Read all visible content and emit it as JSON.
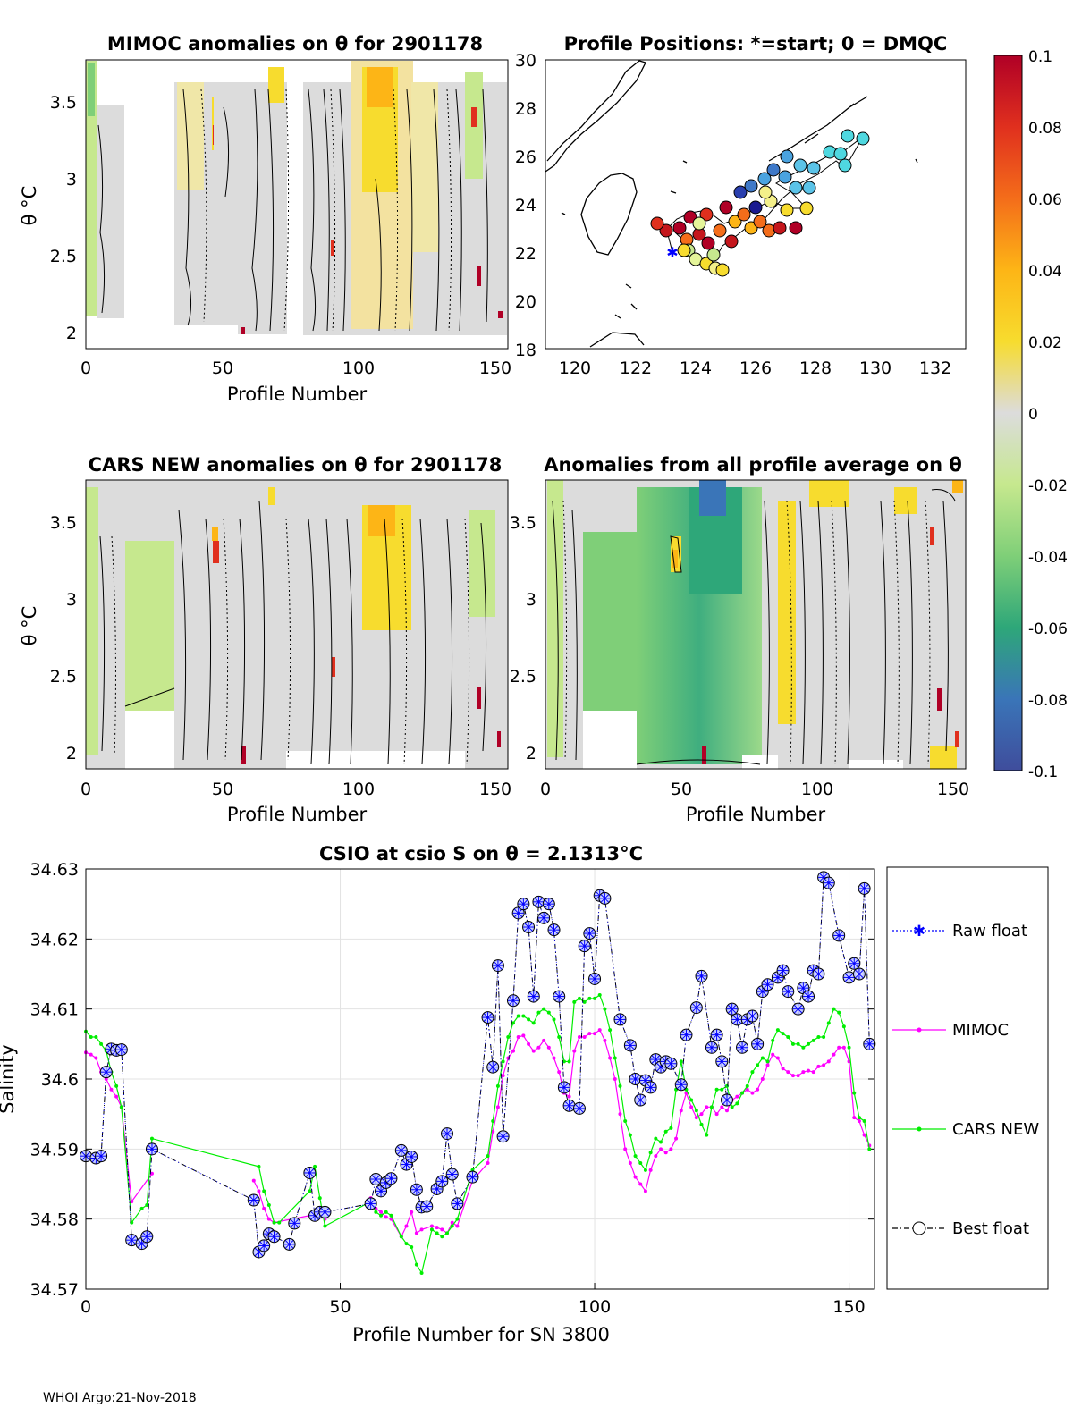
{
  "panels": {
    "mimoc": {
      "title": "MIMOC anomalies on θ  for 2901178",
      "xlabel": "Profile Number",
      "ylabel": "θ °C"
    },
    "positions": {
      "title": "Profile Positions: *=start; 0 = DMQC"
    },
    "cars": {
      "title": "CARS NEW anomalies on θ for 2901178",
      "xlabel": "Profile Number",
      "ylabel": "θ °C"
    },
    "average": {
      "title": "Anomalies from all profile average on θ",
      "xlabel": "Profile Number"
    }
  },
  "colorbar": {
    "ticks": [
      "0.1",
      "0.08",
      "0.06",
      "0.04",
      "0.02",
      "0",
      "-0.02",
      "-0.04",
      "-0.06",
      "-0.08",
      "-0.1"
    ],
    "colors": [
      "#b00026",
      "#e0301e",
      "#f46d1a",
      "#fdb516",
      "#f7dc2e",
      "#dcdcdc",
      "#c6e88e",
      "#7fcf78",
      "#2ea779",
      "#3a75b8",
      "#3f4d9c"
    ]
  },
  "axes": {
    "theta_ticks": [
      "2",
      "2.5",
      "3",
      "3.5"
    ],
    "profile_ticks": [
      "0",
      "50",
      "100",
      "150"
    ],
    "lat_ticks": [
      "18",
      "20",
      "22",
      "24",
      "26",
      "28",
      "30"
    ],
    "lon_ticks": [
      "120",
      "122",
      "124",
      "126",
      "128",
      "130",
      "132"
    ]
  },
  "chart_data": {
    "type": "line",
    "title": "CSIO at csio S on θ = 2.1313°C",
    "xlabel": "Profile Number for SN 3800",
    "ylabel": "Salinity",
    "xlim": [
      0,
      155
    ],
    "ylim": [
      34.57,
      34.63
    ],
    "xticks": [
      "0",
      "50",
      "100",
      "150"
    ],
    "yticks": [
      "34.57",
      "34.58",
      "34.59",
      "34.6",
      "34.61",
      "34.62",
      "34.63"
    ],
    "series": [
      {
        "name": "Raw float",
        "color": "#0000ff",
        "x": [
          0,
          2,
          3,
          4,
          5,
          6,
          7,
          9,
          11,
          12,
          13,
          33,
          34,
          35,
          36,
          37,
          40,
          41,
          44,
          45,
          46,
          47,
          56,
          57,
          58,
          59,
          60,
          62,
          63,
          64,
          65,
          66,
          67,
          69,
          70,
          71,
          72,
          73,
          76,
          79,
          80,
          81,
          82,
          84,
          85,
          86,
          87,
          88,
          89,
          90,
          91,
          92,
          93,
          94,
          95,
          97,
          98,
          99,
          100,
          101,
          102,
          105,
          107,
          108,
          109,
          110,
          111,
          112,
          113,
          114,
          115,
          117,
          118,
          120,
          121,
          123,
          124,
          125,
          126,
          127,
          128,
          129,
          130,
          131,
          132,
          133,
          134,
          136,
          137,
          138,
          140,
          141,
          142,
          143,
          144,
          145,
          146,
          148,
          150,
          151,
          152,
          153,
          154
        ],
        "y": [
          34.589,
          34.5887,
          34.589,
          34.601,
          34.6043,
          34.6041,
          34.6042,
          34.577,
          34.5765,
          34.5775,
          34.59,
          34.5827,
          34.5753,
          34.5762,
          34.5779,
          34.5775,
          34.5764,
          34.5794,
          34.5866,
          34.5805,
          34.581,
          34.581,
          34.5822,
          34.5857,
          34.584,
          34.5852,
          34.5858,
          34.5898,
          34.5878,
          34.5889,
          34.5842,
          34.5817,
          34.5818,
          34.5843,
          34.5854,
          34.5922,
          34.5864,
          34.5822,
          34.586,
          34.6088,
          34.6017,
          34.6162,
          34.5918,
          34.6112,
          34.6237,
          34.625,
          34.6217,
          34.6118,
          34.6253,
          34.623,
          34.625,
          34.6213,
          34.6118,
          34.5988,
          34.5962,
          34.5958,
          34.619,
          34.6208,
          34.6143,
          34.6262,
          34.6258,
          34.6085,
          34.6048,
          34.6,
          34.597,
          34.5998,
          34.5988,
          34.6028,
          34.6017,
          34.6025,
          34.6022,
          34.5992,
          34.6063,
          34.6102,
          34.6147,
          34.6045,
          34.6063,
          34.6025,
          34.597,
          34.61,
          34.6085,
          34.6045,
          34.6085,
          34.609,
          34.605,
          34.6125,
          34.6135,
          34.6145,
          34.6155,
          34.6125,
          34.61,
          34.613,
          34.6118,
          34.6155,
          34.615,
          34.6288,
          34.628,
          34.6205,
          34.6145,
          34.6165,
          34.615,
          34.6272,
          34.605
        ]
      },
      {
        "name": "MIMOC",
        "color": "#ff00ff",
        "x": [
          0,
          1,
          2,
          3,
          4,
          5,
          6,
          7,
          9,
          13,
          33,
          34,
          35,
          36,
          37,
          44,
          45,
          46,
          47,
          56,
          57,
          58,
          59,
          60,
          62,
          63,
          64,
          65,
          66,
          68,
          69,
          70,
          71,
          72,
          73,
          76,
          79,
          80,
          81,
          82,
          83,
          84,
          85,
          86,
          87,
          88,
          89,
          90,
          91,
          92,
          93,
          94,
          95,
          96,
          97,
          98,
          99,
          100,
          101,
          102,
          103,
          104,
          105,
          106,
          107,
          108,
          109,
          110,
          111,
          112,
          113,
          114,
          115,
          116,
          117,
          118,
          119,
          120,
          121,
          122,
          123,
          124,
          125,
          126,
          127,
          128,
          129,
          130,
          131,
          132,
          133,
          134,
          135,
          136,
          137,
          138,
          139,
          140,
          141,
          142,
          143,
          144,
          145,
          146,
          147,
          148,
          149,
          150,
          151,
          152,
          153,
          154
        ],
        "y": [
          34.6038,
          34.6035,
          34.603,
          34.601,
          34.6,
          34.5985,
          34.5975,
          34.596,
          34.5825,
          34.5865,
          34.5855,
          34.584,
          34.5815,
          34.58,
          34.5795,
          34.5805,
          34.581,
          34.5805,
          34.58,
          34.583,
          34.5815,
          34.581,
          34.5803,
          34.58,
          34.5775,
          34.579,
          34.581,
          34.578,
          34.5785,
          34.579,
          34.5788,
          34.5785,
          34.578,
          34.5795,
          34.579,
          34.5855,
          34.588,
          34.5925,
          34.596,
          34.6005,
          34.603,
          34.604,
          34.606,
          34.6062,
          34.605,
          34.604,
          34.6045,
          34.6055,
          34.6045,
          34.603,
          34.601,
          34.598,
          34.5975,
          34.604,
          34.606,
          34.606,
          34.6065,
          34.6065,
          34.607,
          34.6055,
          34.603,
          34.6,
          34.595,
          34.59,
          34.588,
          34.586,
          34.585,
          34.584,
          34.587,
          34.589,
          34.59,
          34.5895,
          34.59,
          34.5915,
          34.5955,
          34.598,
          34.596,
          34.5945,
          34.595,
          34.596,
          34.596,
          34.595,
          34.596,
          34.5955,
          34.597,
          34.5975,
          34.598,
          34.5985,
          34.598,
          34.5985,
          34.6,
          34.602,
          34.6035,
          34.603,
          34.6015,
          34.601,
          34.6005,
          34.6005,
          34.601,
          34.6012,
          34.601,
          34.6018,
          34.602,
          34.6025,
          34.6035,
          34.6045,
          34.6045,
          34.6025,
          34.5945,
          34.594,
          34.592,
          34.5905
        ]
      },
      {
        "name": "CARS NEW",
        "color": "#00ee00",
        "x": [
          0,
          1,
          2,
          3,
          4,
          5,
          6,
          7,
          9,
          11,
          12,
          13,
          34,
          35,
          36,
          37,
          38,
          44,
          45,
          46,
          47,
          56,
          57,
          58,
          59,
          60,
          62,
          63,
          64,
          65,
          66,
          68,
          69,
          70,
          71,
          72,
          73,
          76,
          79,
          80,
          81,
          82,
          83,
          84,
          85,
          86,
          87,
          88,
          89,
          90,
          91,
          92,
          93,
          94,
          95,
          96,
          97,
          98,
          99,
          100,
          101,
          102,
          103,
          104,
          105,
          106,
          107,
          108,
          109,
          110,
          111,
          112,
          113,
          114,
          115,
          116,
          117,
          118,
          119,
          120,
          121,
          122,
          123,
          124,
          125,
          126,
          127,
          128,
          129,
          130,
          131,
          132,
          133,
          134,
          135,
          136,
          137,
          138,
          139,
          140,
          141,
          142,
          143,
          144,
          145,
          146,
          147,
          148,
          149,
          150,
          151,
          152,
          153,
          154
        ],
        "y": [
          34.6068,
          34.606,
          34.606,
          34.605,
          34.604,
          34.601,
          34.599,
          34.596,
          34.5795,
          34.5815,
          34.582,
          34.5915,
          34.5875,
          34.584,
          34.582,
          34.5795,
          34.5795,
          34.584,
          34.5875,
          34.583,
          34.579,
          34.5825,
          34.581,
          34.5805,
          34.581,
          34.5805,
          34.5775,
          34.5765,
          34.576,
          34.5735,
          34.5723,
          34.5785,
          34.578,
          34.5775,
          34.578,
          34.579,
          34.58,
          34.587,
          34.589,
          34.594,
          34.599,
          34.6025,
          34.606,
          34.608,
          34.609,
          34.609,
          34.6085,
          34.608,
          34.6095,
          34.61,
          34.6095,
          34.6085,
          34.606,
          34.6025,
          34.6025,
          34.611,
          34.6115,
          34.611,
          34.6115,
          34.6115,
          34.612,
          34.61,
          34.607,
          34.603,
          34.599,
          34.594,
          34.592,
          34.589,
          34.588,
          34.587,
          34.5895,
          34.5915,
          34.591,
          34.5925,
          34.593,
          34.5985,
          34.6025,
          34.5985,
          34.597,
          34.5955,
          34.5935,
          34.592,
          34.596,
          34.5985,
          34.5985,
          34.599,
          34.596,
          34.5965,
          34.598,
          34.599,
          34.601,
          34.602,
          34.603,
          34.6025,
          34.6055,
          34.607,
          34.6065,
          34.606,
          34.605,
          34.605,
          34.6045,
          34.605,
          34.6055,
          34.606,
          34.606,
          34.608,
          34.61,
          34.6095,
          34.6075,
          34.6045,
          34.598,
          34.5945,
          34.594,
          34.59
        ]
      },
      {
        "name": "Best float",
        "color": "#000000"
      }
    ]
  },
  "footer": "WHOI Argo:21-Nov-2018"
}
